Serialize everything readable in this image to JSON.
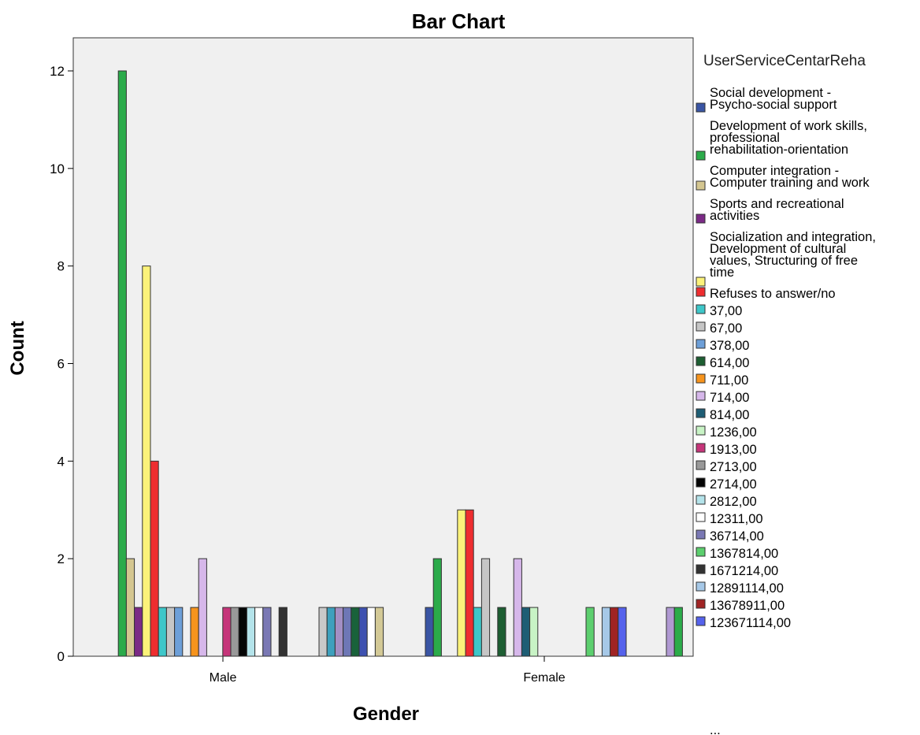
{
  "chart_data": {
    "type": "bar",
    "title": "Bar Chart",
    "xlabel": "Gender",
    "ylabel": "Count",
    "ylim": [
      0,
      12.5
    ],
    "yticks": [
      0,
      2,
      4,
      6,
      8,
      10,
      12
    ],
    "grid": false,
    "legend_placement": "right",
    "legend_title": "UserServiceCentarReha",
    "legend_more": "...",
    "categories": [
      "Male",
      "Female"
    ],
    "series": [
      {
        "name": "Social development - Psycho-social support",
        "color": "#3a55a4",
        "values": [
          0,
          1
        ]
      },
      {
        "name": "Development of work skills, professional rehabilitation-orientation",
        "color": "#2bab4a",
        "values": [
          12,
          2
        ]
      },
      {
        "name": "Computer integration - Computer training and work",
        "color": "#d4c690",
        "values": [
          2,
          0
        ]
      },
      {
        "name": "Sports and recreational activities",
        "color": "#7b2a86",
        "values": [
          1,
          0
        ]
      },
      {
        "name": "Socialization and integration, Development of cultural values, Structuring of free time",
        "color": "#fbf27a",
        "values": [
          8,
          3
        ]
      },
      {
        "name": "Refuses to answer/no",
        "color": "#ee2d2f",
        "values": [
          4,
          3
        ]
      },
      {
        "name": "37,00",
        "color": "#3ec7c9",
        "values": [
          1,
          1
        ]
      },
      {
        "name": "67,00",
        "color": "#c6c6c6",
        "values": [
          1,
          2
        ]
      },
      {
        "name": "378,00",
        "color": "#6d9fd8",
        "values": [
          1,
          0
        ]
      },
      {
        "name": "614,00",
        "color": "#1d5e32",
        "values": [
          0,
          1
        ]
      },
      {
        "name": "711,00",
        "color": "#f7941d",
        "values": [
          1,
          0
        ]
      },
      {
        "name": "714,00",
        "color": "#d6b7ea",
        "values": [
          2,
          2
        ]
      },
      {
        "name": "814,00",
        "color": "#1e5d74",
        "values": [
          0,
          1
        ]
      },
      {
        "name": "1236,00",
        "color": "#c8f3c5",
        "values": [
          0,
          1
        ]
      },
      {
        "name": "1913,00",
        "color": "#c6357a",
        "values": [
          1,
          0
        ]
      },
      {
        "name": "2713,00",
        "color": "#999999",
        "values": [
          1,
          0
        ]
      },
      {
        "name": "2714,00",
        "color": "#050505",
        "values": [
          1,
          0
        ]
      },
      {
        "name": "2812,00",
        "color": "#b4e3ea",
        "values": [
          1,
          0
        ]
      },
      {
        "name": "12311,00",
        "color": "#ffffff",
        "values": [
          1,
          0
        ]
      },
      {
        "name": "36714,00",
        "color": "#7a78b4",
        "values": [
          1,
          0
        ]
      },
      {
        "name": "1367814,00",
        "color": "#5ccf6e",
        "values": [
          0,
          1
        ]
      },
      {
        "name": "1671214,00",
        "color": "#333333",
        "values": [
          1,
          0
        ]
      },
      {
        "name": "12891114,00",
        "color": "#a6c8e7",
        "values": [
          0,
          1
        ]
      },
      {
        "name": "13678911,00",
        "color": "#a02424",
        "values": [
          0,
          1
        ]
      },
      {
        "name": "123671114,00",
        "color": "#5562ec",
        "values": [
          0,
          1
        ]
      }
    ],
    "hidden_series_bars": [
      {
        "category": "Male",
        "values": [
          1,
          1,
          1,
          1,
          1,
          1,
          1,
          1
        ],
        "colors": [
          "#c9c9c9",
          "#3ea0bd",
          "#a38fc4",
          "#6e77b6",
          "#19623a",
          "#3e51b0",
          "#ffffff",
          "#d3c996"
        ]
      },
      {
        "category": "Female",
        "values": [
          1,
          1
        ],
        "colors": [
          "#b099d2",
          "#2bab4a"
        ]
      }
    ]
  }
}
